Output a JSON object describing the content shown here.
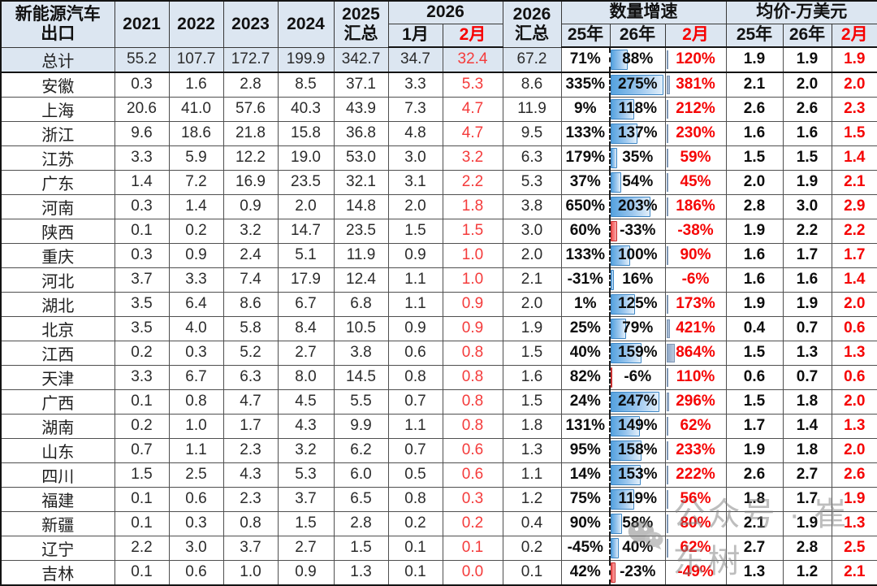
{
  "chart_data": {
    "type": "table",
    "header": {
      "corner": [
        "新能源汽车",
        "出口"
      ],
      "years": [
        "2021",
        "2022",
        "2023",
        "2024"
      ],
      "sum2025": [
        "2025",
        "汇总"
      ],
      "y2026": "2026",
      "months": [
        "1月",
        "2月"
      ],
      "sum2026": [
        "2026",
        "汇总"
      ],
      "growth_label": "数量增速",
      "growth_cols": [
        "25年",
        "26年",
        "2月"
      ],
      "price_label": "均价-万美元",
      "price_cols": [
        "25年",
        "26年",
        "2月"
      ]
    },
    "growth_bar_max_percent": 275,
    "feb_bar_max_percent": 864,
    "rows": [
      {
        "region": "总计",
        "highlight": true,
        "values": [
          "55.2",
          "107.7",
          "172.7",
          "199.9",
          "342.7",
          "34.7",
          "32.4",
          "67.2"
        ],
        "growth": [
          "71%",
          "88%",
          "120%"
        ],
        "price": [
          "1.9",
          "1.9",
          "1.9"
        ]
      },
      {
        "region": "安徽",
        "highlight": false,
        "values": [
          "0.3",
          "1.6",
          "2.8",
          "8.5",
          "37.1",
          "3.3",
          "5.3",
          "8.6"
        ],
        "growth": [
          "335%",
          "275%",
          "381%"
        ],
        "price": [
          "2.1",
          "2.0",
          "2.0"
        ]
      },
      {
        "region": "上海",
        "highlight": false,
        "values": [
          "20.6",
          "41.0",
          "57.6",
          "40.3",
          "43.9",
          "7.3",
          "4.7",
          "11.9"
        ],
        "growth": [
          "9%",
          "118%",
          "212%"
        ],
        "price": [
          "2.6",
          "2.6",
          "2.3"
        ]
      },
      {
        "region": "浙江",
        "highlight": false,
        "values": [
          "9.6",
          "18.6",
          "21.8",
          "15.8",
          "36.8",
          "4.8",
          "4.7",
          "9.5"
        ],
        "growth": [
          "133%",
          "137%",
          "230%"
        ],
        "price": [
          "1.6",
          "1.6",
          "1.5"
        ]
      },
      {
        "region": "江苏",
        "highlight": false,
        "values": [
          "3.3",
          "5.9",
          "12.2",
          "19.0",
          "53.0",
          "3.0",
          "3.2",
          "6.3"
        ],
        "growth": [
          "179%",
          "35%",
          "59%"
        ],
        "price": [
          "1.5",
          "1.5",
          "1.4"
        ]
      },
      {
        "region": "广东",
        "highlight": false,
        "values": [
          "1.4",
          "7.2",
          "16.9",
          "23.5",
          "32.1",
          "3.1",
          "2.2",
          "5.3"
        ],
        "growth": [
          "37%",
          "54%",
          "45%"
        ],
        "price": [
          "2.0",
          "1.9",
          "2.1"
        ]
      },
      {
        "region": "河南",
        "highlight": false,
        "values": [
          "0.3",
          "1.4",
          "0.9",
          "2.0",
          "14.8",
          "2.0",
          "1.8",
          "3.8"
        ],
        "growth": [
          "650%",
          "203%",
          "186%"
        ],
        "price": [
          "2.8",
          "3.0",
          "2.9"
        ]
      },
      {
        "region": "陕西",
        "highlight": false,
        "values": [
          "0.1",
          "0.2",
          "3.2",
          "14.7",
          "23.5",
          "1.5",
          "1.5",
          "3.0"
        ],
        "growth": [
          "60%",
          "-33%",
          "-38%"
        ],
        "price": [
          "1.9",
          "2.2",
          "2.2"
        ]
      },
      {
        "region": "重庆",
        "highlight": false,
        "values": [
          "0.3",
          "0.9",
          "2.4",
          "5.1",
          "11.9",
          "0.9",
          "1.0",
          "2.0"
        ],
        "growth": [
          "133%",
          "100%",
          "90%"
        ],
        "price": [
          "1.6",
          "1.7",
          "1.7"
        ]
      },
      {
        "region": "河北",
        "highlight": false,
        "values": [
          "3.7",
          "3.3",
          "7.4",
          "17.9",
          "12.4",
          "1.1",
          "1.0",
          "2.1"
        ],
        "growth": [
          "-31%",
          "16%",
          "-6%"
        ],
        "price": [
          "1.6",
          "1.6",
          "1.4"
        ]
      },
      {
        "region": "湖北",
        "highlight": false,
        "values": [
          "3.5",
          "6.4",
          "8.6",
          "6.7",
          "6.8",
          "1.1",
          "0.9",
          "2.0"
        ],
        "growth": [
          "1%",
          "125%",
          "173%"
        ],
        "price": [
          "1.9",
          "1.9",
          "2.0"
        ]
      },
      {
        "region": "北京",
        "highlight": false,
        "values": [
          "3.5",
          "4.0",
          "5.8",
          "8.4",
          "10.5",
          "0.9",
          "0.9",
          "1.9"
        ],
        "growth": [
          "25%",
          "79%",
          "421%"
        ],
        "price": [
          "0.4",
          "0.7",
          "0.6"
        ]
      },
      {
        "region": "江西",
        "highlight": false,
        "values": [
          "0.2",
          "0.3",
          "5.2",
          "2.7",
          "3.8",
          "0.6",
          "0.8",
          "1.5"
        ],
        "growth": [
          "40%",
          "159%",
          "864%"
        ],
        "price": [
          "1.5",
          "1.3",
          "1.3"
        ]
      },
      {
        "region": "天津",
        "highlight": false,
        "values": [
          "3.3",
          "6.7",
          "6.3",
          "8.0",
          "14.5",
          "0.8",
          "0.8",
          "1.6"
        ],
        "growth": [
          "82%",
          "-6%",
          "110%"
        ],
        "price": [
          "0.6",
          "0.7",
          "0.6"
        ]
      },
      {
        "region": "广西",
        "highlight": false,
        "values": [
          "0.1",
          "0.8",
          "4.7",
          "4.5",
          "5.5",
          "0.7",
          "0.8",
          "1.5"
        ],
        "growth": [
          "24%",
          "247%",
          "296%"
        ],
        "price": [
          "1.5",
          "1.8",
          "2.0"
        ]
      },
      {
        "region": "湖南",
        "highlight": false,
        "values": [
          "0.2",
          "1.0",
          "1.7",
          "4.3",
          "9.9",
          "1.1",
          "0.8",
          "1.8"
        ],
        "growth": [
          "131%",
          "149%",
          "62%"
        ],
        "price": [
          "1.7",
          "1.4",
          "1.3"
        ]
      },
      {
        "region": "山东",
        "highlight": false,
        "values": [
          "0.7",
          "1.1",
          "2.3",
          "3.2",
          "6.2",
          "0.7",
          "0.6",
          "1.3"
        ],
        "growth": [
          "95%",
          "158%",
          "233%"
        ],
        "price": [
          "1.9",
          "1.8",
          "2.0"
        ]
      },
      {
        "region": "四川",
        "highlight": false,
        "values": [
          "1.5",
          "2.5",
          "4.3",
          "5.3",
          "6.0",
          "0.5",
          "0.6",
          "1.1"
        ],
        "growth": [
          "14%",
          "153%",
          "222%"
        ],
        "price": [
          "2.6",
          "2.7",
          "2.6"
        ]
      },
      {
        "region": "福建",
        "highlight": false,
        "values": [
          "0.1",
          "0.6",
          "2.3",
          "3.7",
          "6.5",
          "0.8",
          "0.3",
          "1.2"
        ],
        "growth": [
          "75%",
          "119%",
          "56%"
        ],
        "price": [
          "1.8",
          "1.7",
          "1.9"
        ]
      },
      {
        "region": "新疆",
        "highlight": false,
        "values": [
          "0.1",
          "0.3",
          "0.8",
          "1.5",
          "2.8",
          "0.2",
          "0.2",
          "0.4"
        ],
        "growth": [
          "90%",
          "58%",
          "80%"
        ],
        "price": [
          "2.1",
          "1.9",
          "1.3"
        ]
      },
      {
        "region": "辽宁",
        "highlight": false,
        "values": [
          "2.2",
          "3.0",
          "3.7",
          "2.7",
          "1.5",
          "0.1",
          "0.1",
          "0.2"
        ],
        "growth": [
          "-45%",
          "40%",
          "62%"
        ],
        "price": [
          "2.7",
          "2.8",
          "2.5"
        ]
      },
      {
        "region": "吉林",
        "highlight": false,
        "values": [
          "0.1",
          "0.6",
          "1.0",
          "0.9",
          "1.3",
          "0.1",
          "0.0",
          "0.1"
        ],
        "growth": [
          "42%",
          "-23%",
          "-49%"
        ],
        "price": [
          "1.3",
          "1.2",
          "2.1"
        ]
      }
    ]
  },
  "watermark": {
    "icon": "wechat-icon",
    "text": "公众号 · 崔东树"
  },
  "colors": {
    "header_bg": "#dce6f1",
    "accent_red": "#f50505",
    "bar_blue": "#55a2df",
    "bar_negative_red": "#f25050",
    "bar_slate": "#8fa7c6",
    "grid": "#4f4f4f"
  }
}
